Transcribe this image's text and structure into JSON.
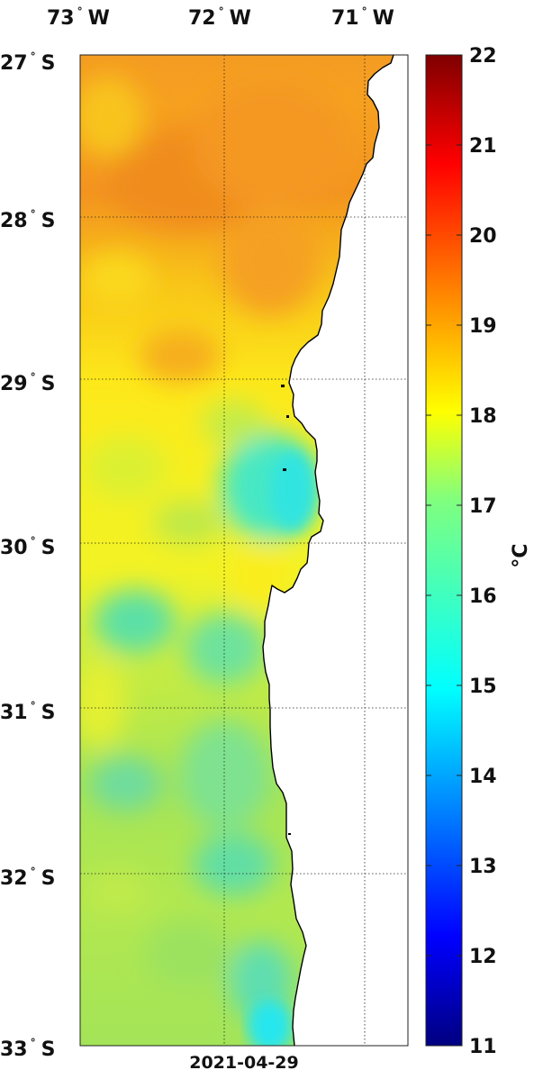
{
  "map": {
    "date_label": "2021-04-29",
    "lon_labels": [
      {
        "deg": "73",
        "hemi": "W"
      },
      {
        "deg": "72",
        "hemi": "W"
      },
      {
        "deg": "71",
        "hemi": "W"
      }
    ],
    "lat_labels": [
      {
        "deg": "27",
        "hemi": "S"
      },
      {
        "deg": "28",
        "hemi": "S"
      },
      {
        "deg": "29",
        "hemi": "S"
      },
      {
        "deg": "30",
        "hemi": "S"
      },
      {
        "deg": "31",
        "hemi": "S"
      },
      {
        "deg": "32",
        "hemi": "S"
      },
      {
        "deg": "33",
        "hemi": "S"
      }
    ],
    "land_color": "#ffffff",
    "coastline_color": "#000000"
  },
  "colorbar": {
    "unit": "°C",
    "ticks": [
      "11",
      "12",
      "13",
      "14",
      "15",
      "16",
      "17",
      "18",
      "19",
      "20",
      "21",
      "22"
    ],
    "min": 11,
    "max": 22,
    "colormap": "jet"
  }
}
